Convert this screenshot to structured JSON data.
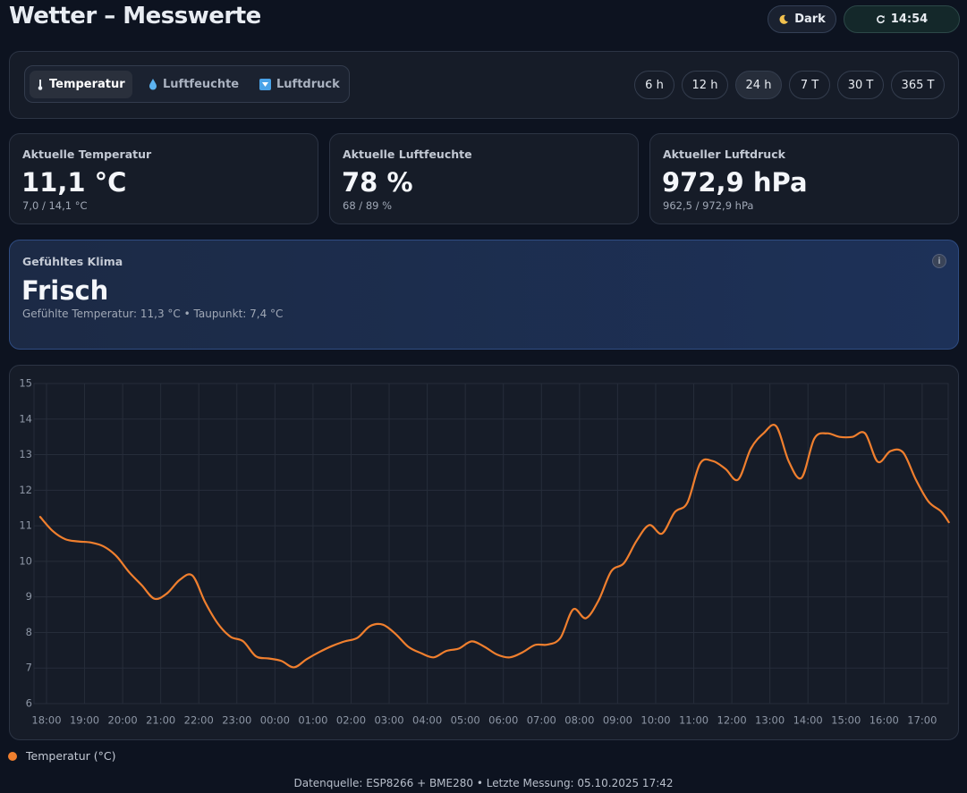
{
  "header": {
    "title": "Wetter – Messwerte",
    "theme_button": "Dark",
    "refresh_time": "14:54"
  },
  "metric_tabs": [
    "Temperatur",
    "Luftfeuchte",
    "Luftdruck"
  ],
  "range_buttons": [
    "6 h",
    "12 h",
    "24 h",
    "7 T",
    "30 T",
    "365 T"
  ],
  "cards": [
    {
      "label": "Aktuelle Temperatur",
      "value": "11,1 °C",
      "range": "7,0 / 14,1 °C"
    },
    {
      "label": "Aktuelle Luftfeuchte",
      "value": "78 %",
      "range": "68 / 89 %"
    },
    {
      "label": "Aktueller Luftdruck",
      "value": "972,9 hPa",
      "range": "962,5 / 972,9 hPa"
    }
  ],
  "climate": {
    "label": "Gefühltes Klima",
    "value": "Frisch",
    "details": "Gefühlte Temperatur: 11,3 °C • Taupunkt: 7,4 °C",
    "info": "i"
  },
  "chart_data": {
    "type": "line",
    "x": [
      "17:50",
      "18:10",
      "18:30",
      "18:50",
      "19:10",
      "19:30",
      "19:50",
      "20:10",
      "20:30",
      "20:50",
      "21:10",
      "21:30",
      "21:50",
      "22:10",
      "22:30",
      "22:50",
      "23:10",
      "23:30",
      "23:50",
      "00:10",
      "00:30",
      "00:50",
      "01:10",
      "01:30",
      "01:50",
      "02:10",
      "02:30",
      "02:50",
      "03:10",
      "03:30",
      "03:50",
      "04:10",
      "04:30",
      "04:50",
      "05:10",
      "05:30",
      "05:50",
      "06:10",
      "06:30",
      "06:50",
      "07:10",
      "07:30",
      "07:50",
      "08:10",
      "08:30",
      "08:50",
      "09:10",
      "09:30",
      "09:50",
      "10:10",
      "10:30",
      "10:50",
      "11:10",
      "11:30",
      "11:50",
      "12:10",
      "12:30",
      "12:50",
      "13:10",
      "13:30",
      "13:50",
      "14:10",
      "14:30",
      "14:50",
      "15:10",
      "15:30",
      "15:50",
      "16:10",
      "16:30",
      "16:50",
      "17:10",
      "17:30",
      "17:42"
    ],
    "series": [
      {
        "name": "Temperatur (°C)",
        "color": "#f07f2e",
        "values": [
          11.25,
          10.85,
          10.62,
          10.56,
          10.53,
          10.42,
          10.15,
          9.7,
          9.33,
          8.95,
          9.1,
          9.48,
          9.6,
          8.85,
          8.25,
          7.88,
          7.75,
          7.33,
          7.27,
          7.2,
          7.02,
          7.25,
          7.45,
          7.62,
          7.75,
          7.85,
          8.18,
          8.22,
          7.96,
          7.6,
          7.42,
          7.3,
          7.48,
          7.55,
          7.75,
          7.6,
          7.38,
          7.3,
          7.44,
          7.65,
          7.66,
          7.85,
          8.65,
          8.4,
          8.9,
          9.72,
          9.95,
          10.58,
          11.02,
          10.78,
          11.38,
          11.65,
          12.75,
          12.82,
          12.6,
          12.3,
          13.17,
          13.6,
          13.8,
          12.8,
          12.35,
          13.45,
          13.6,
          13.5,
          13.5,
          13.6,
          12.8,
          13.1,
          13.06,
          12.3,
          11.68,
          11.4,
          11.1
        ]
      }
    ],
    "xticks": [
      "18:00",
      "19:00",
      "20:00",
      "21:00",
      "22:00",
      "23:00",
      "00:00",
      "01:00",
      "02:00",
      "03:00",
      "04:00",
      "05:00",
      "06:00",
      "07:00",
      "08:00",
      "09:00",
      "10:00",
      "11:00",
      "12:00",
      "13:00",
      "14:00",
      "15:00",
      "16:00",
      "17:00"
    ],
    "ylim": [
      6,
      15
    ],
    "yticks": [
      6,
      7,
      8,
      9,
      10,
      11,
      12,
      13,
      14,
      15
    ],
    "grid": true
  },
  "footer": "Datenquelle: ESP8266 + BME280 • Letzte Messung: 05.10.2025 17:42"
}
